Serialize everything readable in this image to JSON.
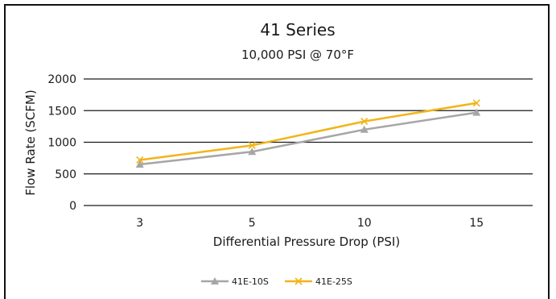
{
  "chart_data": {
    "type": "line",
    "title": "41 Series",
    "subtitle": "10,000 PSI @ 70°F",
    "xlabel": "Differential Pressure Drop (PSI)",
    "ylabel": "Flow Rate (SCFM)",
    "categories": [
      "3",
      "5",
      "10",
      "15"
    ],
    "ylim": [
      0,
      2000
    ],
    "yticks": [
      "0",
      "500",
      "1000",
      "1500",
      "2000"
    ],
    "grid": "horizontal",
    "legend_position": "bottom",
    "series": [
      {
        "name": "41E-10S",
        "values": [
          650,
          850,
          1200,
          1470
        ],
        "color": "#a6a6a6",
        "marker": "triangle"
      },
      {
        "name": "41E-25S",
        "values": [
          720,
          950,
          1330,
          1620
        ],
        "color": "#f2b418",
        "marker": "x"
      }
    ]
  }
}
